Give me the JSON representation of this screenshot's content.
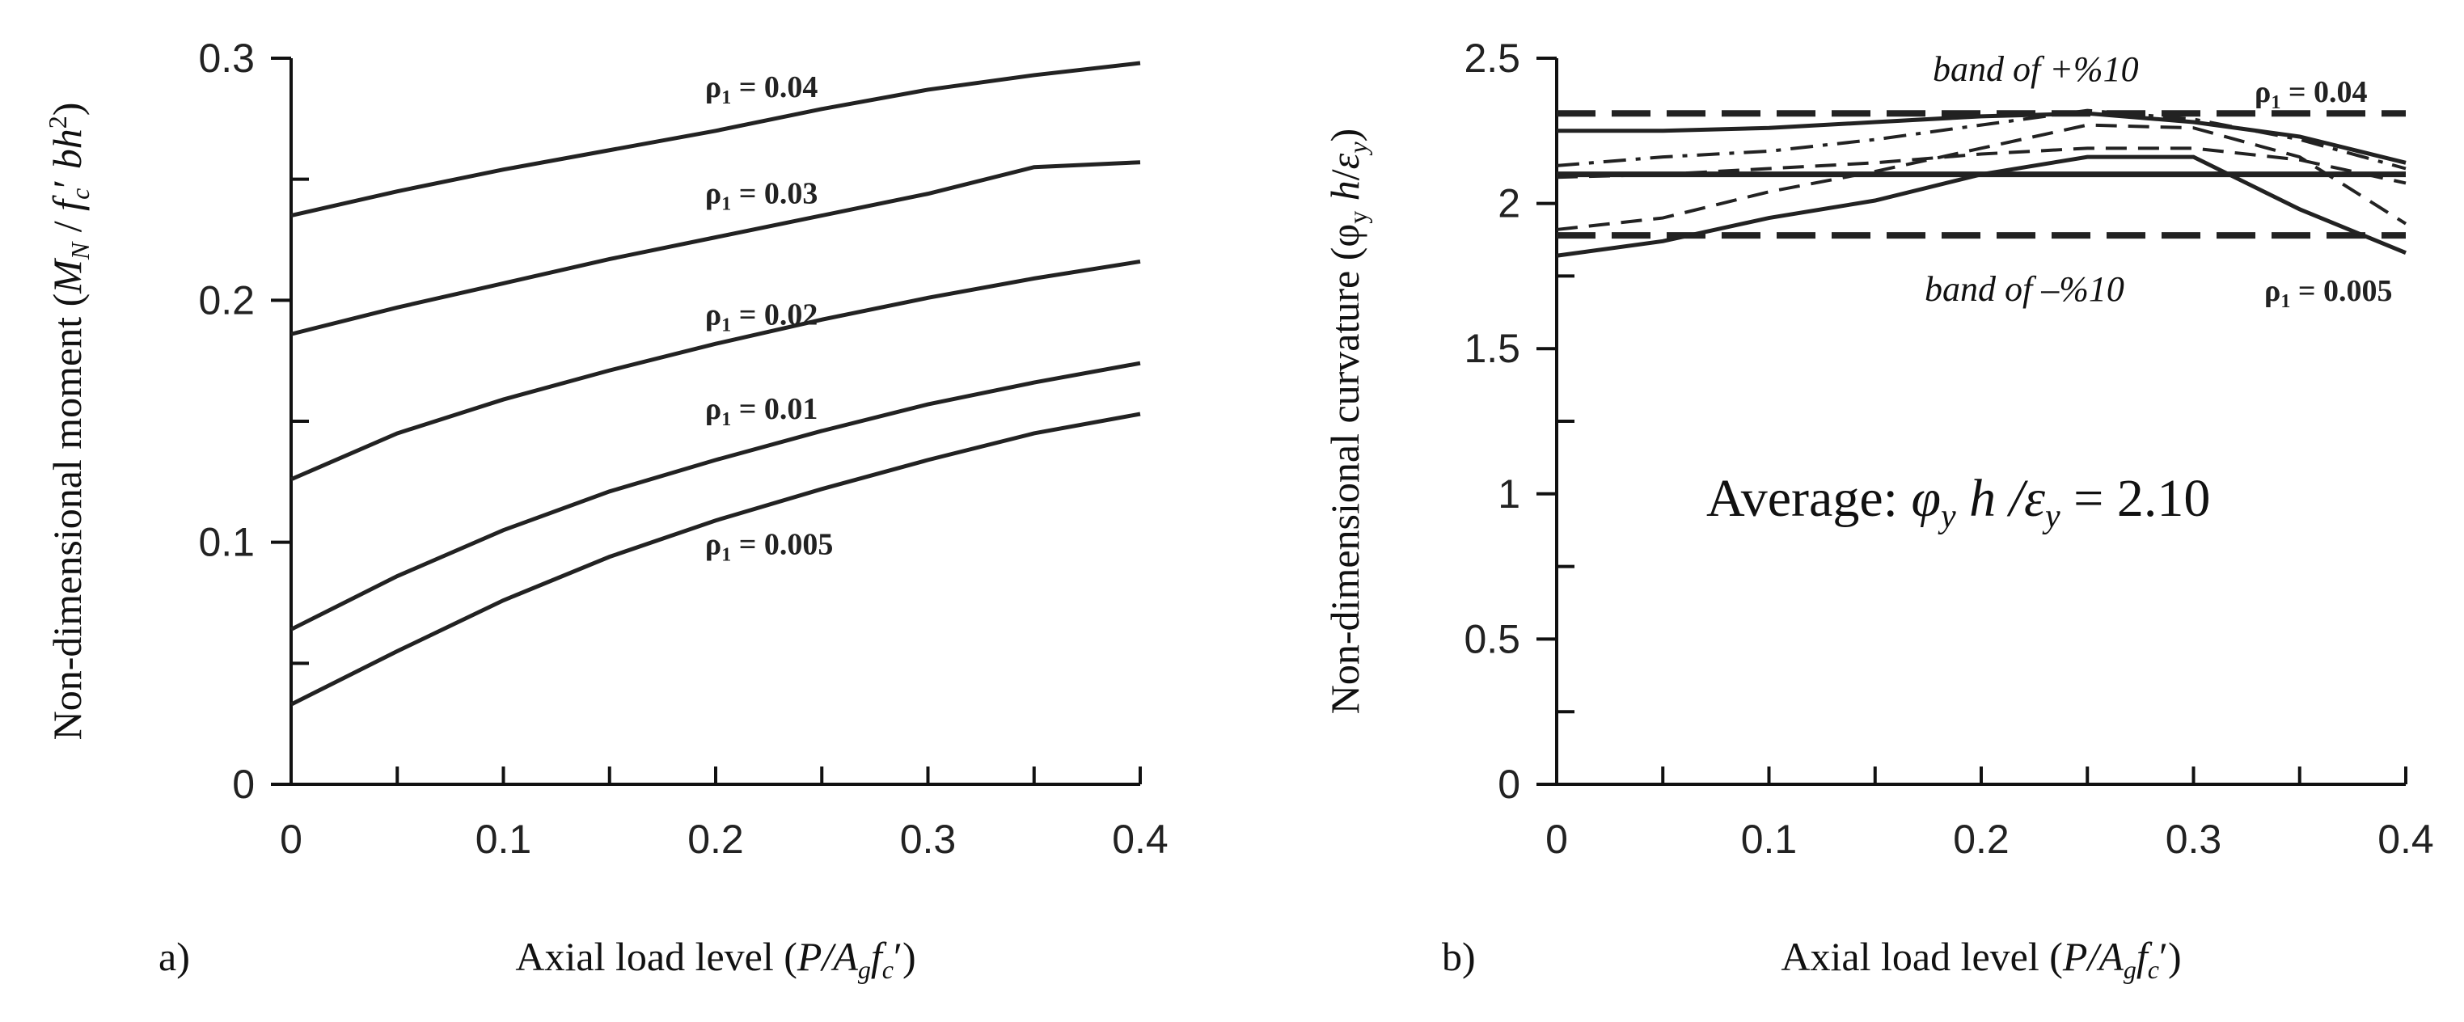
{
  "colors": {
    "ink": "#111111",
    "curve": "#222222",
    "background": "#ffffff"
  },
  "chart_data": [
    {
      "type": "line",
      "panel_label": "a)",
      "title": "",
      "xlabel": "Axial load level (P/Agfc′)",
      "ylabel": "Non-dimensional moment (MN / fc′ bh²)",
      "xlabel_parts": {
        "prefix": "Axial load level (",
        "italic": "P/A",
        "sub": "g",
        "italic2": "f",
        "sub2": "c",
        "suffix": "′)"
      },
      "ylabel_parts": {
        "prefix": "Non-dimensional moment (",
        "italic": "M",
        "sub": "N",
        "mid": " / ",
        "italic2": "f",
        "sub2": "c",
        "mid2": "′ ",
        "italic3": "bh",
        "sup": "2",
        "suffix": ")"
      },
      "xlim": [
        0,
        0.4
      ],
      "ylim": [
        0,
        0.3
      ],
      "x_ticks": [
        "0",
        "0.1",
        "0.2",
        "0.3",
        "0.4"
      ],
      "y_ticks": [
        "0",
        "0.1",
        "0.2",
        "0.3"
      ],
      "x": [
        0,
        0.05,
        0.1,
        0.15,
        0.2,
        0.25,
        0.3,
        0.35,
        0.4
      ],
      "series": [
        {
          "name": "ρ1 = 0.04",
          "label_prefix": "ρ",
          "label_sub": "1",
          "label_value": " = 0.04",
          "label_at": [
            0.195,
            0.284
          ],
          "values": [
            0.235,
            0.245,
            0.254,
            0.262,
            0.27,
            0.279,
            0.287,
            0.293,
            0.298
          ]
        },
        {
          "name": "ρ1 = 0.03",
          "label_prefix": "ρ",
          "label_sub": "1",
          "label_value": " = 0.03",
          "label_at": [
            0.195,
            0.24
          ],
          "values": [
            0.186,
            0.197,
            0.207,
            0.217,
            0.226,
            0.235,
            0.244,
            0.255,
            0.257
          ]
        },
        {
          "name": "ρ1 = 0.02",
          "label_prefix": "ρ",
          "label_sub": "1",
          "label_value": " = 0.02",
          "label_at": [
            0.195,
            0.19
          ],
          "values": [
            0.126,
            0.145,
            0.159,
            0.171,
            0.182,
            0.192,
            0.201,
            0.209,
            0.216
          ]
        },
        {
          "name": "ρ1 = 0.01",
          "label_prefix": "ρ",
          "label_sub": "1",
          "label_value": " = 0.01",
          "label_at": [
            0.195,
            0.151
          ],
          "values": [
            0.064,
            0.086,
            0.105,
            0.121,
            0.134,
            0.146,
            0.157,
            0.166,
            0.174
          ]
        },
        {
          "name": "ρ1 = 0.005",
          "label_prefix": "ρ",
          "label_sub": "1",
          "label_value": " = 0.005",
          "label_at": [
            0.195,
            0.095
          ],
          "values": [
            0.033,
            0.055,
            0.076,
            0.094,
            0.109,
            0.122,
            0.134,
            0.145,
            0.153
          ]
        }
      ]
    },
    {
      "type": "line",
      "panel_label": "b)",
      "title": "",
      "xlabel": "Axial load level (P/Agfc′)",
      "ylabel": "Non-dimensional curvature (φy h/εy)",
      "xlabel_parts": {
        "prefix": "Axial load level (",
        "italic": "P/A",
        "sub": "g",
        "italic2": "f",
        "sub2": "c",
        "suffix": "′)"
      },
      "ylabel_parts": {
        "prefix": "Non-dimensional curvature (φ",
        "sub": "y",
        "mid": " ",
        "italic": "h",
        "mid2": "/",
        "italic2": "ε",
        "sub2": "y",
        "suffix": ")"
      },
      "xlim": [
        0,
        0.4
      ],
      "ylim": [
        0,
        2.5
      ],
      "x_ticks": [
        "0",
        "0.1",
        "0.2",
        "0.3",
        "0.4"
      ],
      "y_ticks": [
        "0",
        "0.5",
        "1",
        "1.5",
        "2",
        "2.5"
      ],
      "series": [
        {
          "name": "average",
          "style": "solid-thick",
          "x": [
            0,
            0.4
          ],
          "values": [
            2.1,
            2.1
          ]
        },
        {
          "name": "band of +%10",
          "style": "band",
          "x": [
            0,
            0.4
          ],
          "values": [
            2.31,
            2.31
          ]
        },
        {
          "name": "band of –%10",
          "style": "band",
          "x": [
            0,
            0.4
          ],
          "values": [
            1.89,
            1.89
          ]
        },
        {
          "name": "ρ1 = 0.04",
          "style": "solid",
          "x": [
            0,
            0.05,
            0.1,
            0.15,
            0.2,
            0.25,
            0.3,
            0.35,
            0.4
          ],
          "values": [
            2.25,
            2.25,
            2.26,
            2.28,
            2.3,
            2.31,
            2.28,
            2.23,
            2.14
          ]
        },
        {
          "name": "series-dashdot",
          "style": "dashdot",
          "x": [
            0,
            0.05,
            0.1,
            0.15,
            0.2,
            0.25,
            0.3,
            0.35,
            0.4
          ],
          "values": [
            2.13,
            2.16,
            2.18,
            2.22,
            2.27,
            2.32,
            2.29,
            2.22,
            2.12
          ]
        },
        {
          "name": "series-dashed-a",
          "style": "dashed",
          "x": [
            0,
            0.05,
            0.1,
            0.15,
            0.2,
            0.25,
            0.3,
            0.35,
            0.4
          ],
          "values": [
            2.09,
            2.1,
            2.12,
            2.14,
            2.17,
            2.19,
            2.19,
            2.15,
            2.07
          ]
        },
        {
          "name": "series-dashed-b",
          "style": "dashed",
          "x": [
            0,
            0.05,
            0.1,
            0.15,
            0.2,
            0.25,
            0.3,
            0.35,
            0.4
          ],
          "values": [
            1.91,
            1.95,
            2.04,
            2.11,
            2.19,
            2.27,
            2.26,
            2.16,
            1.93
          ]
        },
        {
          "name": "ρ1 = 0.005",
          "style": "solid",
          "x": [
            0,
            0.05,
            0.1,
            0.15,
            0.2,
            0.25,
            0.3,
            0.35,
            0.4
          ],
          "values": [
            1.82,
            1.87,
            1.95,
            2.01,
            2.1,
            2.16,
            2.16,
            1.98,
            1.83
          ]
        }
      ],
      "annotations": {
        "band_plus": "band of +%10",
        "band_minus": "band of –%10",
        "rho_top": {
          "prefix": "ρ",
          "sub": "1",
          "value": " = 0.04"
        },
        "rho_bottom": {
          "prefix": "ρ",
          "sub": "1",
          "value": " = 0.005"
        },
        "average": {
          "prefix": "Average: ",
          "phi": "φ",
          "phi_sub": "y",
          "h": " h /",
          "eps": "ε",
          "eps_sub": "y",
          "value": " = 2.10"
        }
      }
    }
  ]
}
